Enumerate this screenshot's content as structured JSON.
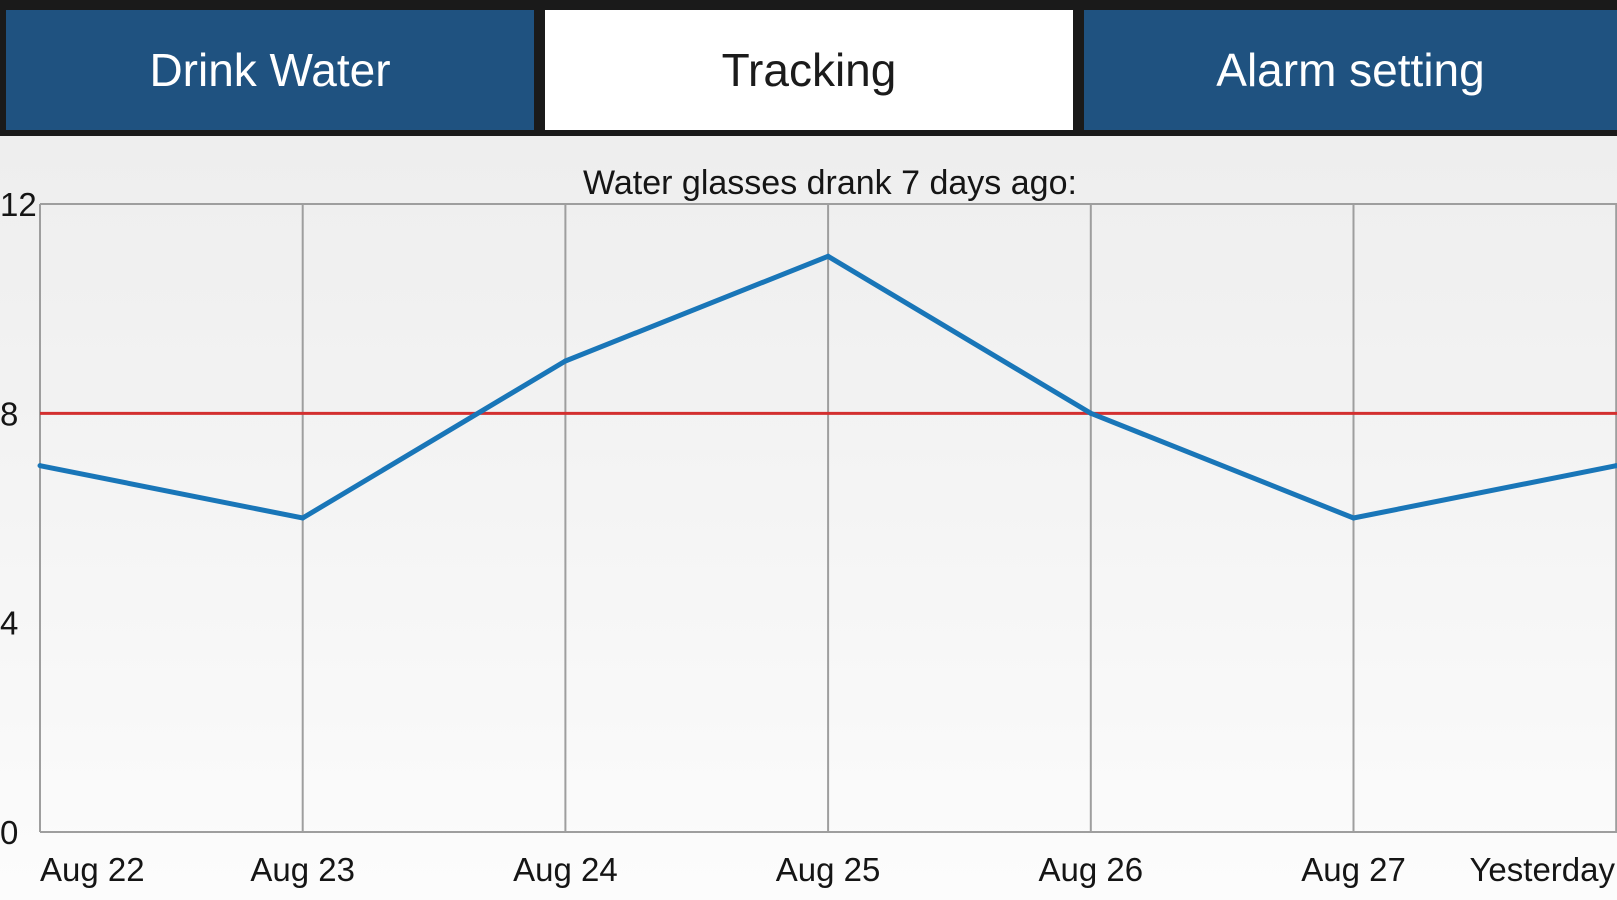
{
  "tabs": [
    {
      "label": "Drink Water",
      "active": false
    },
    {
      "label": "Tracking",
      "active": true
    },
    {
      "label": "Alarm setting",
      "active": false
    }
  ],
  "colors": {
    "tab_active_bg": "#ffffff",
    "tab_inactive_bg": "#1f5280",
    "series_line": "#1976b8",
    "goal_line": "#d32f2f",
    "grid": "#9e9e9e"
  },
  "chart_data": {
    "type": "line",
    "title": "Water glasses drank 7 days ago:",
    "categories": [
      "Aug 22",
      "Aug 23",
      "Aug 24",
      "Aug 25",
      "Aug 26",
      "Aug 27",
      "Yesterday"
    ],
    "series": [
      {
        "values": [
          7,
          6,
          9,
          11,
          8,
          6,
          7
        ]
      }
    ],
    "goal": 8,
    "ylim": [
      0,
      12
    ],
    "yticks": [
      0,
      4,
      8,
      12
    ],
    "grid": "vertical"
  }
}
